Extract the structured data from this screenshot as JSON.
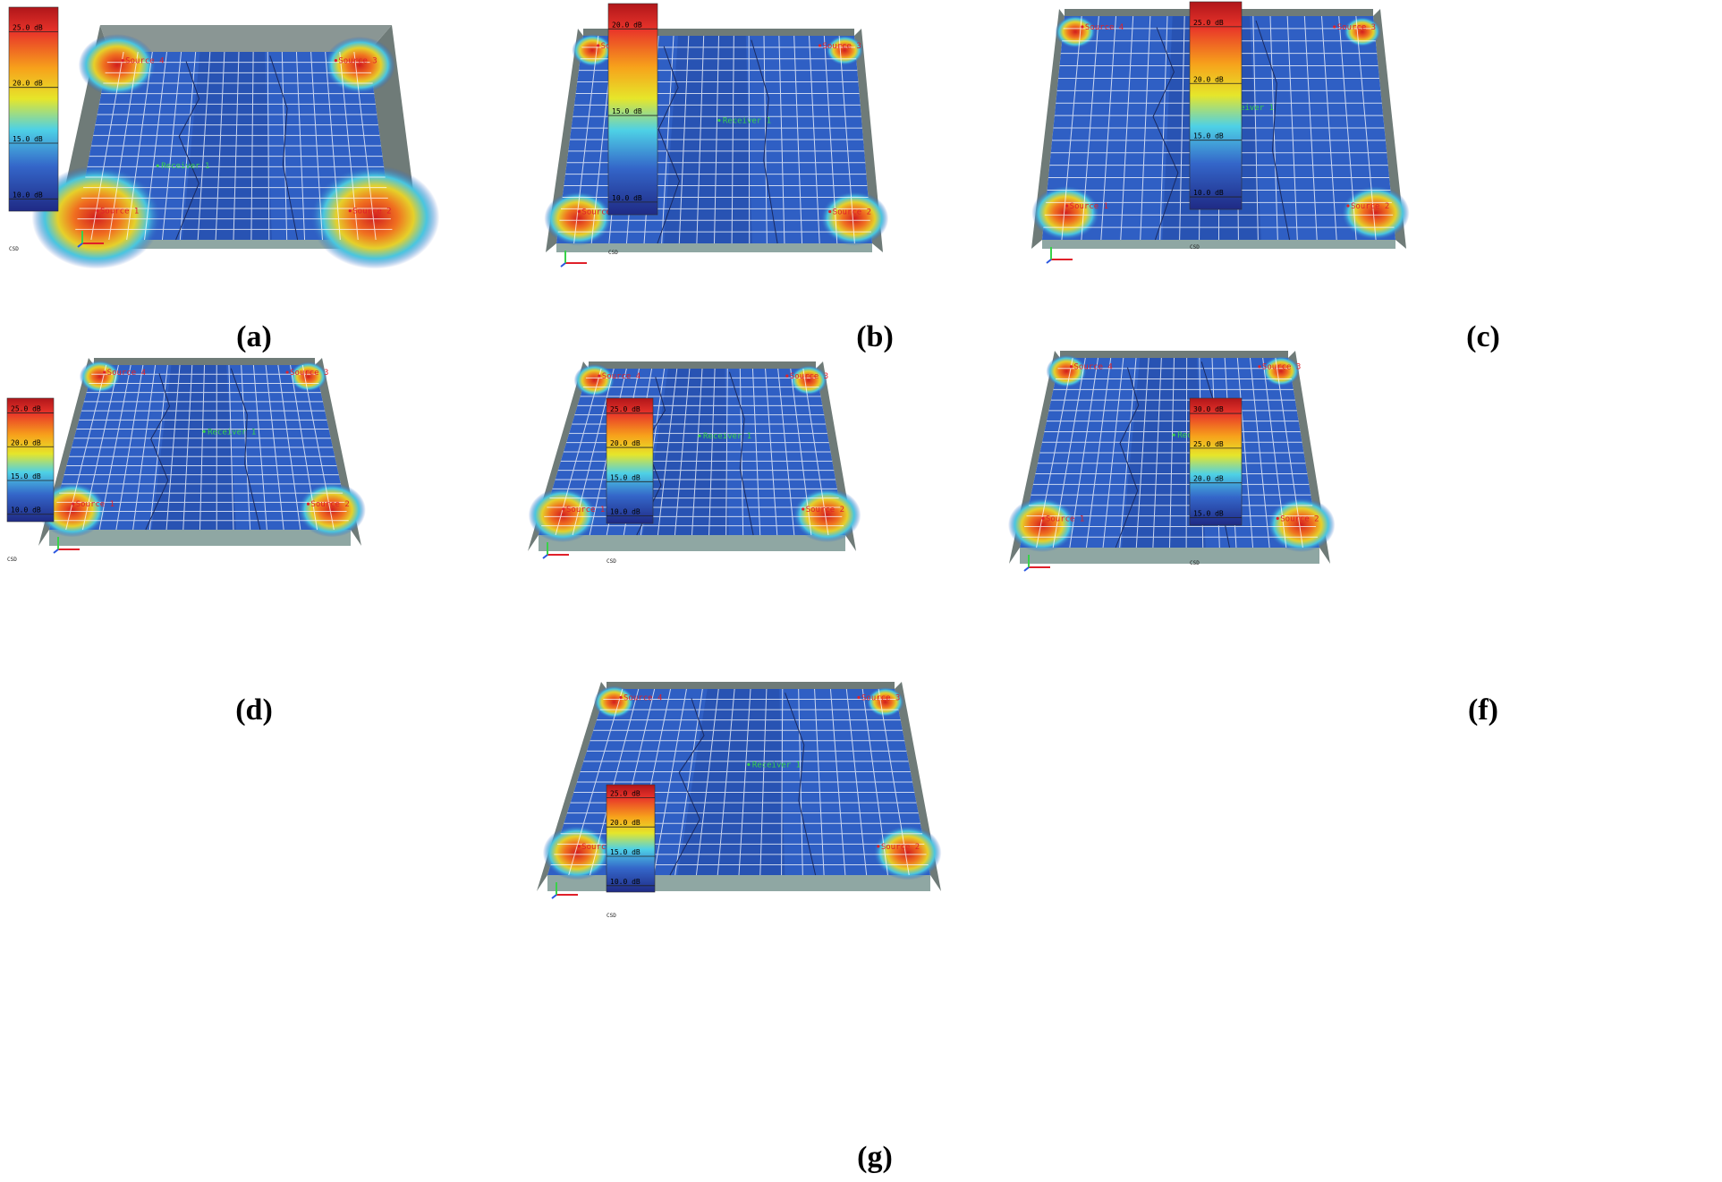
{
  "panels": [
    {
      "caption": "(a)",
      "scale_ticks": [
        "25.0 dB",
        "20.0 dB",
        "15.0 dB",
        "10.0 dB"
      ],
      "sources": [
        "Source 1",
        "Source 2",
        "Source 3",
        "Source 4"
      ],
      "receiver": "Receiver 1",
      "corner_label": "CSD"
    },
    {
      "caption": "(b)",
      "scale_ticks": [
        "20.0 dB",
        "15.0 dB",
        "10.0 dB"
      ],
      "sources": [
        "Source 1",
        "Source 2",
        "Source 3",
        "Source 4"
      ],
      "receiver": "Receiver 1",
      "corner_label": "CSD"
    },
    {
      "caption": "(c)",
      "scale_ticks": [
        "25.0 dB",
        "20.0 dB",
        "15.0 dB",
        "10.0 dB"
      ],
      "sources": [
        "Source 1",
        "Source 2",
        "Source 3",
        "Source 4"
      ],
      "receiver": "Receiver 1",
      "corner_label": "CSD"
    },
    {
      "caption": "(d)",
      "scale_ticks": [
        "25.0 dB",
        "20.0 dB",
        "15.0 dB",
        "10.0 dB"
      ],
      "sources": [
        "Source 1",
        "Source 2",
        "Source 3",
        "Source 4"
      ],
      "receiver": "Receiver 1",
      "corner_label": "CSD"
    },
    {
      "caption": "(e)",
      "scale_ticks": [
        "25.0 dB",
        "20.0 dB",
        "15.0 dB",
        "10.0 dB"
      ],
      "sources": [
        "Source 1",
        "Source 2",
        "Source 3",
        "Source 4"
      ],
      "receiver": "Receiver 1",
      "corner_label": "CSD"
    },
    {
      "caption": "(f)",
      "scale_ticks": [
        "30.0 dB",
        "25.0 dB",
        "20.0 dB",
        "15.0 dB"
      ],
      "sources": [
        "Source 1",
        "Source 2",
        "Source 3",
        "Source 4"
      ],
      "receiver": "Receiver 1",
      "corner_label": "CSD"
    },
    {
      "caption": "(g)",
      "scale_ticks": [
        "25.0 dB",
        "20.0 dB",
        "15.0 dB",
        "10.0 dB"
      ],
      "sources": [
        "Source 1",
        "Source 2",
        "Source 3",
        "Source 4"
      ],
      "receiver": "Receiver 1",
      "corner_label": "CSD"
    }
  ],
  "colors": {
    "room_wall": "#6f7b78",
    "room_floor_edge": "#8fa7a3",
    "field_base": "#2f5fc4",
    "hotspot": "#e8332a",
    "grid": "#ffffff"
  }
}
